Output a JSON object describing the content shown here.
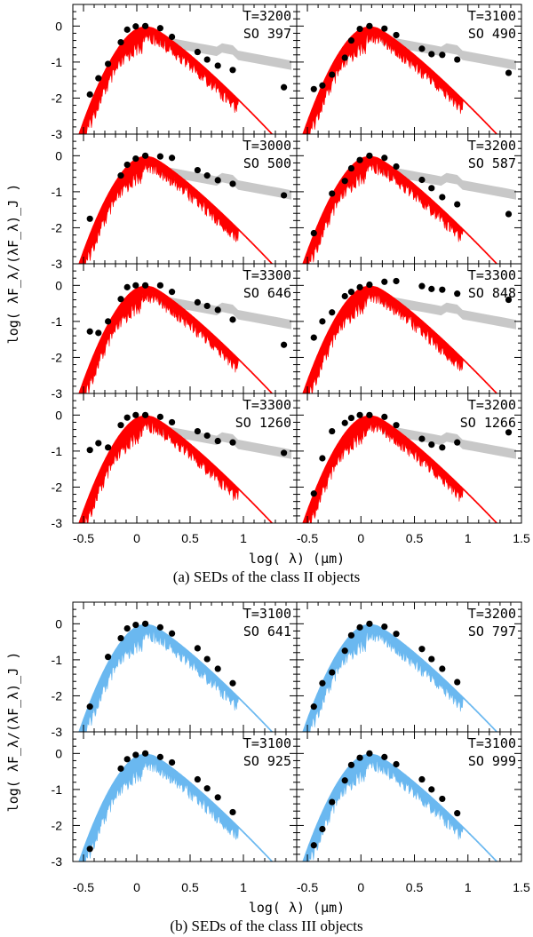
{
  "colors": {
    "class2": "#ff0000",
    "class3": "#6ab8f0",
    "band": "#c8c8c8",
    "points": "#000000"
  },
  "chart_data": [
    {
      "type": "scatter",
      "title": "(a) SEDs of the class II objects",
      "xlabel": "log( λ) (μm)",
      "ylabel": "log( λF_λ/(λF_λ)_J )",
      "xlim": [
        -0.6,
        1.5
      ],
      "ylim": [
        -3,
        0.6
      ],
      "x_ticks": [
        "-0.5",
        "0",
        "0.5",
        "1",
        "1.5"
      ],
      "y_ticks": [
        "0",
        "-1",
        "-2",
        "-3"
      ],
      "model_color": "#ff0000",
      "panels": [
        {
          "temp_label": "T=3200",
          "obj_label": "SO 397",
          "x": [
            -0.44,
            -0.36,
            -0.27,
            -0.15,
            -0.09,
            -0.01,
            0.08,
            0.22,
            0.33,
            0.57,
            0.66,
            0.76,
            0.9,
            1.38
          ],
          "y": [
            -1.9,
            -1.45,
            -1.05,
            -0.45,
            -0.1,
            -0.01,
            0.0,
            -0.06,
            -0.3,
            -0.72,
            -0.93,
            -1.1,
            -1.22,
            -1.7
          ]
        },
        {
          "temp_label": "T=3100",
          "obj_label": "SO 490",
          "x": [
            -0.44,
            -0.36,
            -0.27,
            -0.15,
            -0.09,
            -0.01,
            0.08,
            0.22,
            0.33,
            0.57,
            0.66,
            0.76,
            0.9,
            1.38
          ],
          "y": [
            -1.75,
            -1.65,
            -1.35,
            -0.88,
            -0.4,
            -0.08,
            0.0,
            -0.07,
            -0.25,
            -0.63,
            -0.78,
            -0.8,
            -0.93,
            -1.3
          ]
        },
        {
          "temp_label": "T=3000",
          "obj_label": "SO 500",
          "x": [
            -0.44,
            -0.15,
            -0.09,
            -0.01,
            0.08,
            0.22,
            0.33,
            0.57,
            0.66,
            0.76,
            0.9,
            1.38
          ],
          "y": [
            -1.75,
            -0.55,
            -0.25,
            -0.08,
            0.0,
            -0.02,
            -0.06,
            -0.4,
            -0.55,
            -0.68,
            -0.78,
            -1.1
          ]
        },
        {
          "temp_label": "T=3200",
          "obj_label": "SO 587",
          "x": [
            -0.44,
            -0.27,
            -0.15,
            -0.09,
            -0.01,
            0.08,
            0.22,
            0.33,
            0.57,
            0.66,
            0.76,
            0.9,
            1.38
          ],
          "y": [
            -2.15,
            -1.05,
            -0.7,
            -0.35,
            -0.12,
            0.0,
            -0.06,
            -0.3,
            -0.67,
            -0.9,
            -1.15,
            -1.35,
            -1.62
          ]
        },
        {
          "temp_label": "T=3300",
          "obj_label": "SO 646",
          "x": [
            -0.44,
            -0.36,
            -0.27,
            -0.15,
            -0.09,
            -0.01,
            0.08,
            0.22,
            0.33,
            0.57,
            0.66,
            0.76,
            0.9,
            1.38
          ],
          "y": [
            -1.28,
            -1.32,
            -1.0,
            -0.38,
            -0.05,
            0.0,
            0.0,
            0.0,
            -0.18,
            -0.47,
            -0.57,
            -0.68,
            -0.95,
            -1.65
          ]
        },
        {
          "temp_label": "T=3300",
          "obj_label": "SO 848",
          "x": [
            -0.44,
            -0.36,
            -0.27,
            -0.15,
            -0.09,
            -0.01,
            0.08,
            0.22,
            0.33,
            0.57,
            0.66,
            0.76,
            0.9,
            1.38
          ],
          "y": [
            -1.45,
            -1.0,
            -0.75,
            -0.3,
            -0.18,
            -0.05,
            0.02,
            0.1,
            0.12,
            -0.02,
            -0.1,
            -0.12,
            -0.23,
            -0.4
          ]
        },
        {
          "temp_label": "T=3300",
          "obj_label": "SO 1260",
          "x": [
            -0.44,
            -0.36,
            -0.27,
            -0.15,
            -0.09,
            -0.01,
            0.08,
            0.22,
            0.33,
            0.57,
            0.66,
            0.76,
            0.9,
            1.38
          ],
          "y": [
            -0.97,
            -0.78,
            -0.9,
            -0.28,
            -0.07,
            0.0,
            0.0,
            -0.05,
            -0.2,
            -0.45,
            -0.57,
            -0.72,
            -0.76,
            -1.05
          ]
        },
        {
          "temp_label": "T=3200",
          "obj_label": "SO 1266",
          "x": [
            -0.44,
            -0.36,
            -0.27,
            -0.15,
            -0.09,
            -0.01,
            0.08,
            0.22,
            0.33,
            0.57,
            0.66,
            0.76,
            0.9,
            1.38
          ],
          "y": [
            -2.18,
            -1.2,
            -0.45,
            -0.22,
            -0.08,
            0.0,
            0.0,
            -0.05,
            -0.28,
            -0.66,
            -0.82,
            -0.9,
            -0.76,
            -0.48
          ]
        }
      ]
    },
    {
      "type": "scatter",
      "title": "(b) SEDs of the class III objects",
      "xlabel": "log( λ) (μm)",
      "ylabel": "log( λF_λ/(λF_λ)_J )",
      "xlim": [
        -0.6,
        1.5
      ],
      "ylim": [
        -3,
        0.6
      ],
      "x_ticks": [
        "-0.5",
        "0",
        "0.5",
        "1",
        "1.5"
      ],
      "y_ticks": [
        "0",
        "-1",
        "-2",
        "-3"
      ],
      "model_color": "#6ab8f0",
      "panels": [
        {
          "temp_label": "T=3100",
          "obj_label": "SO 641",
          "x": [
            -0.44,
            -0.27,
            -0.15,
            -0.09,
            -0.01,
            0.08,
            0.22,
            0.33,
            0.57,
            0.66,
            0.76,
            0.9
          ],
          "y": [
            -2.3,
            -0.92,
            -0.4,
            -0.13,
            -0.03,
            0.0,
            -0.1,
            -0.27,
            -0.68,
            -0.98,
            -1.25,
            -1.65
          ]
        },
        {
          "temp_label": "T=3200",
          "obj_label": "SO 797",
          "x": [
            -0.44,
            -0.36,
            -0.27,
            -0.15,
            -0.09,
            -0.01,
            0.08,
            0.22,
            0.33,
            0.57,
            0.66,
            0.76,
            0.9
          ],
          "y": [
            -2.3,
            -1.65,
            -1.35,
            -0.75,
            -0.32,
            -0.1,
            0.0,
            -0.08,
            -0.28,
            -0.7,
            -0.98,
            -1.25,
            -1.62
          ]
        },
        {
          "temp_label": "T=3100",
          "obj_label": "SO 925",
          "x": [
            -0.44,
            -0.15,
            -0.09,
            -0.01,
            0.08,
            0.22,
            0.33,
            0.57,
            0.66,
            0.76,
            0.9
          ],
          "y": [
            -2.65,
            -0.42,
            -0.16,
            -0.04,
            0.0,
            -0.1,
            -0.25,
            -0.72,
            -0.97,
            -1.22,
            -1.63
          ]
        },
        {
          "temp_label": "T=3100",
          "obj_label": "SO 999",
          "x": [
            -0.44,
            -0.36,
            -0.27,
            -0.15,
            -0.09,
            -0.01,
            0.08,
            0.22,
            0.33,
            0.57,
            0.66,
            0.76,
            0.9
          ],
          "y": [
            -2.55,
            -2.1,
            -1.35,
            -0.75,
            -0.32,
            -0.12,
            0.0,
            -0.1,
            -0.3,
            -0.72,
            -1.0,
            -1.26,
            -1.66
          ]
        }
      ]
    }
  ]
}
